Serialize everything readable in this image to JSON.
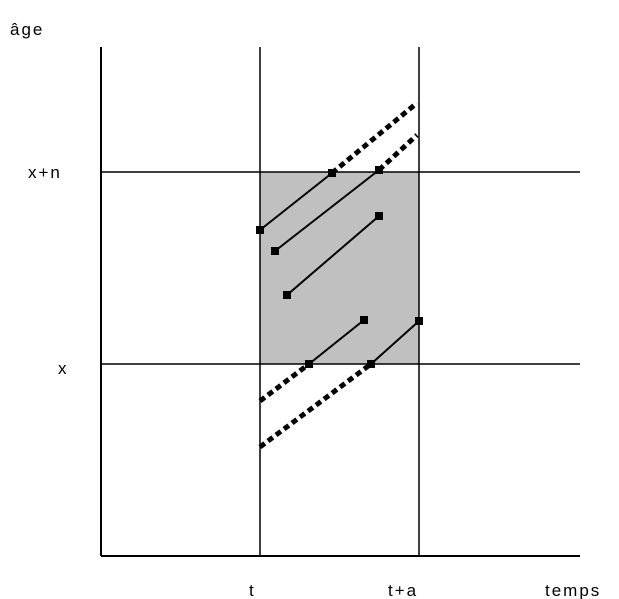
{
  "axes": {
    "y_label": "âge",
    "x_label": "temps"
  },
  "age_labels": [
    "x+n",
    "x"
  ],
  "time_labels": [
    "t",
    "t+a"
  ]
}
